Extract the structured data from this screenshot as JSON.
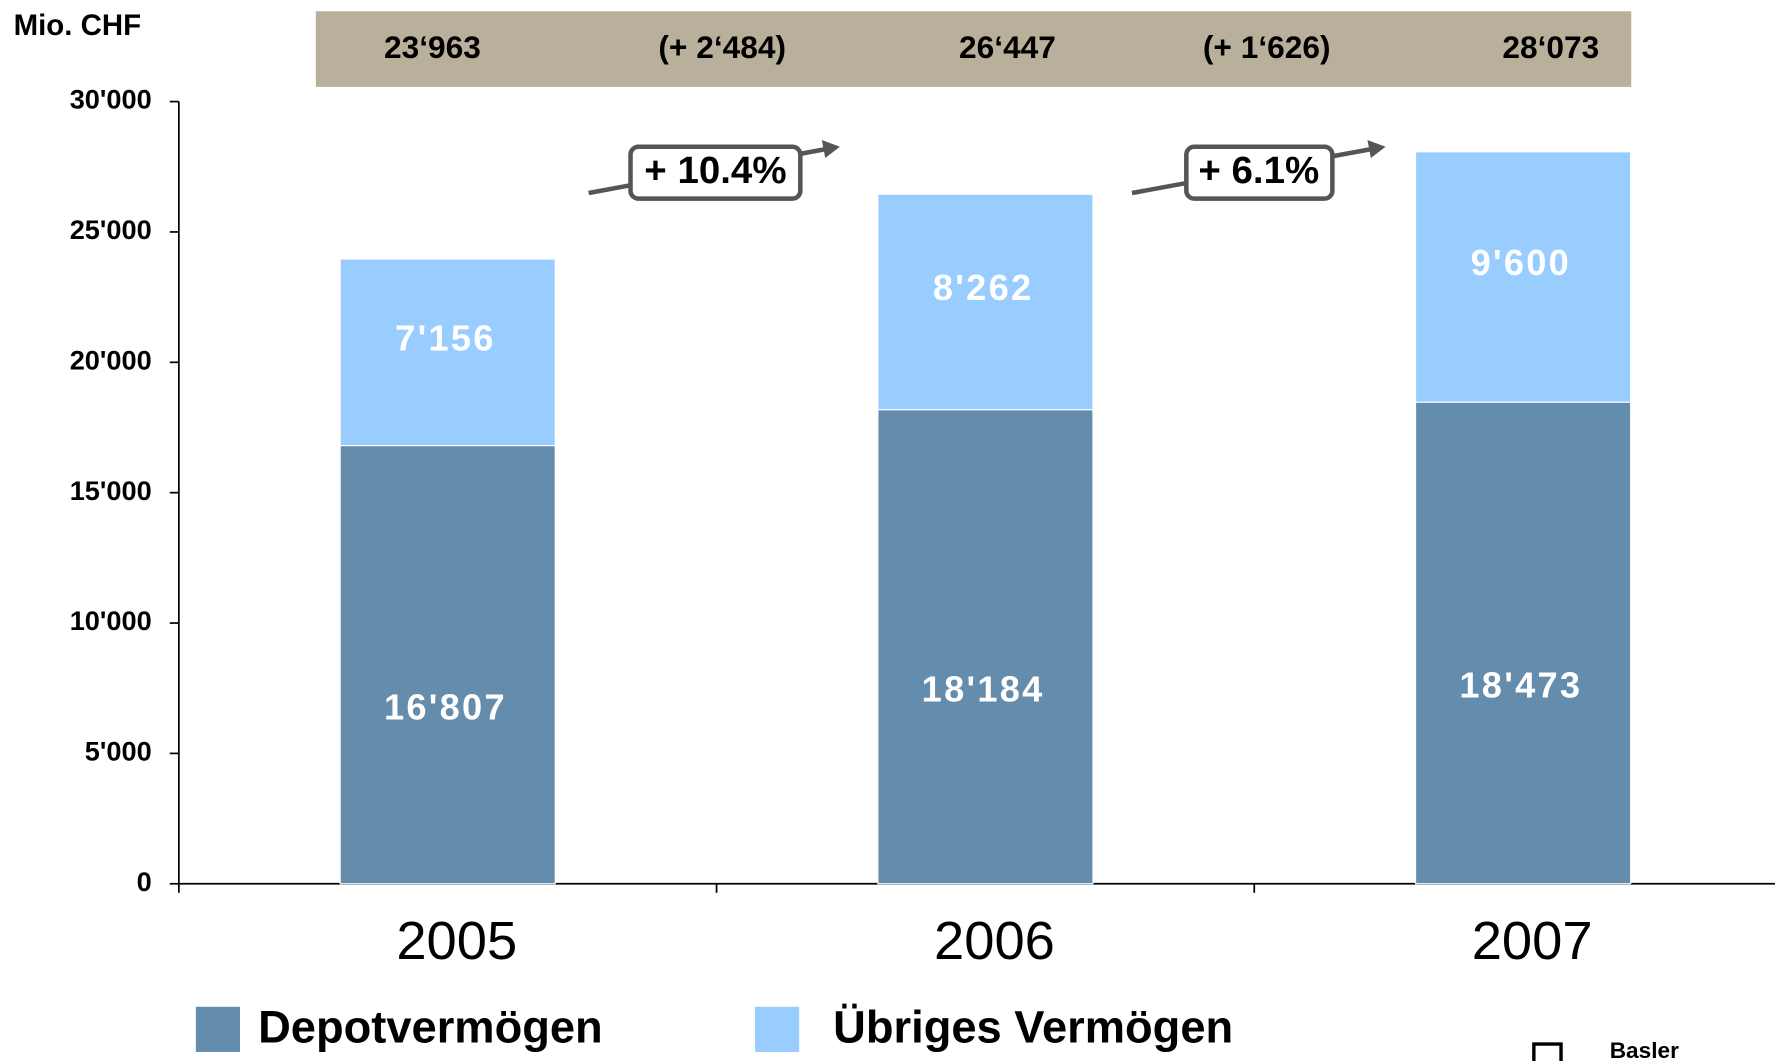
{
  "chart_data": {
    "type": "stacked_bar",
    "y_axis_label": "Mio. CHF",
    "categories": [
      "2005",
      "2006",
      "2007"
    ],
    "series": [
      {
        "name": "Depotvermögen",
        "color": "#648cac",
        "values": [
          16807,
          18184,
          18473
        ],
        "value_labels": [
          "16'807",
          "18'184",
          "18'473"
        ]
      },
      {
        "name": "Übriges Vermögen",
        "color": "#99ccff",
        "values": [
          7156,
          8262,
          9600
        ],
        "value_labels": [
          "7'156",
          "8'262",
          "9'600"
        ]
      }
    ],
    "ylim": [
      0,
      30000
    ],
    "yticks": [
      0,
      {
        "value": 5000,
        "label": "5'000"
      },
      {
        "value": 10000,
        "label": "10'000"
      },
      {
        "value": 15000,
        "label": "15'000"
      },
      {
        "value": 20000,
        "label": "20'000"
      },
      {
        "value": 25000,
        "label": "25'000"
      },
      {
        "value": 30000,
        "label": "30'000"
      }
    ],
    "summary_band": [
      "23‘963",
      "(+ 2‘484)",
      "26‘447",
      "(+ 1‘626)",
      "28‘073"
    ],
    "annotations": [
      "+ 10.4%",
      "+ 6.1%"
    ],
    "logo": "Basler"
  }
}
